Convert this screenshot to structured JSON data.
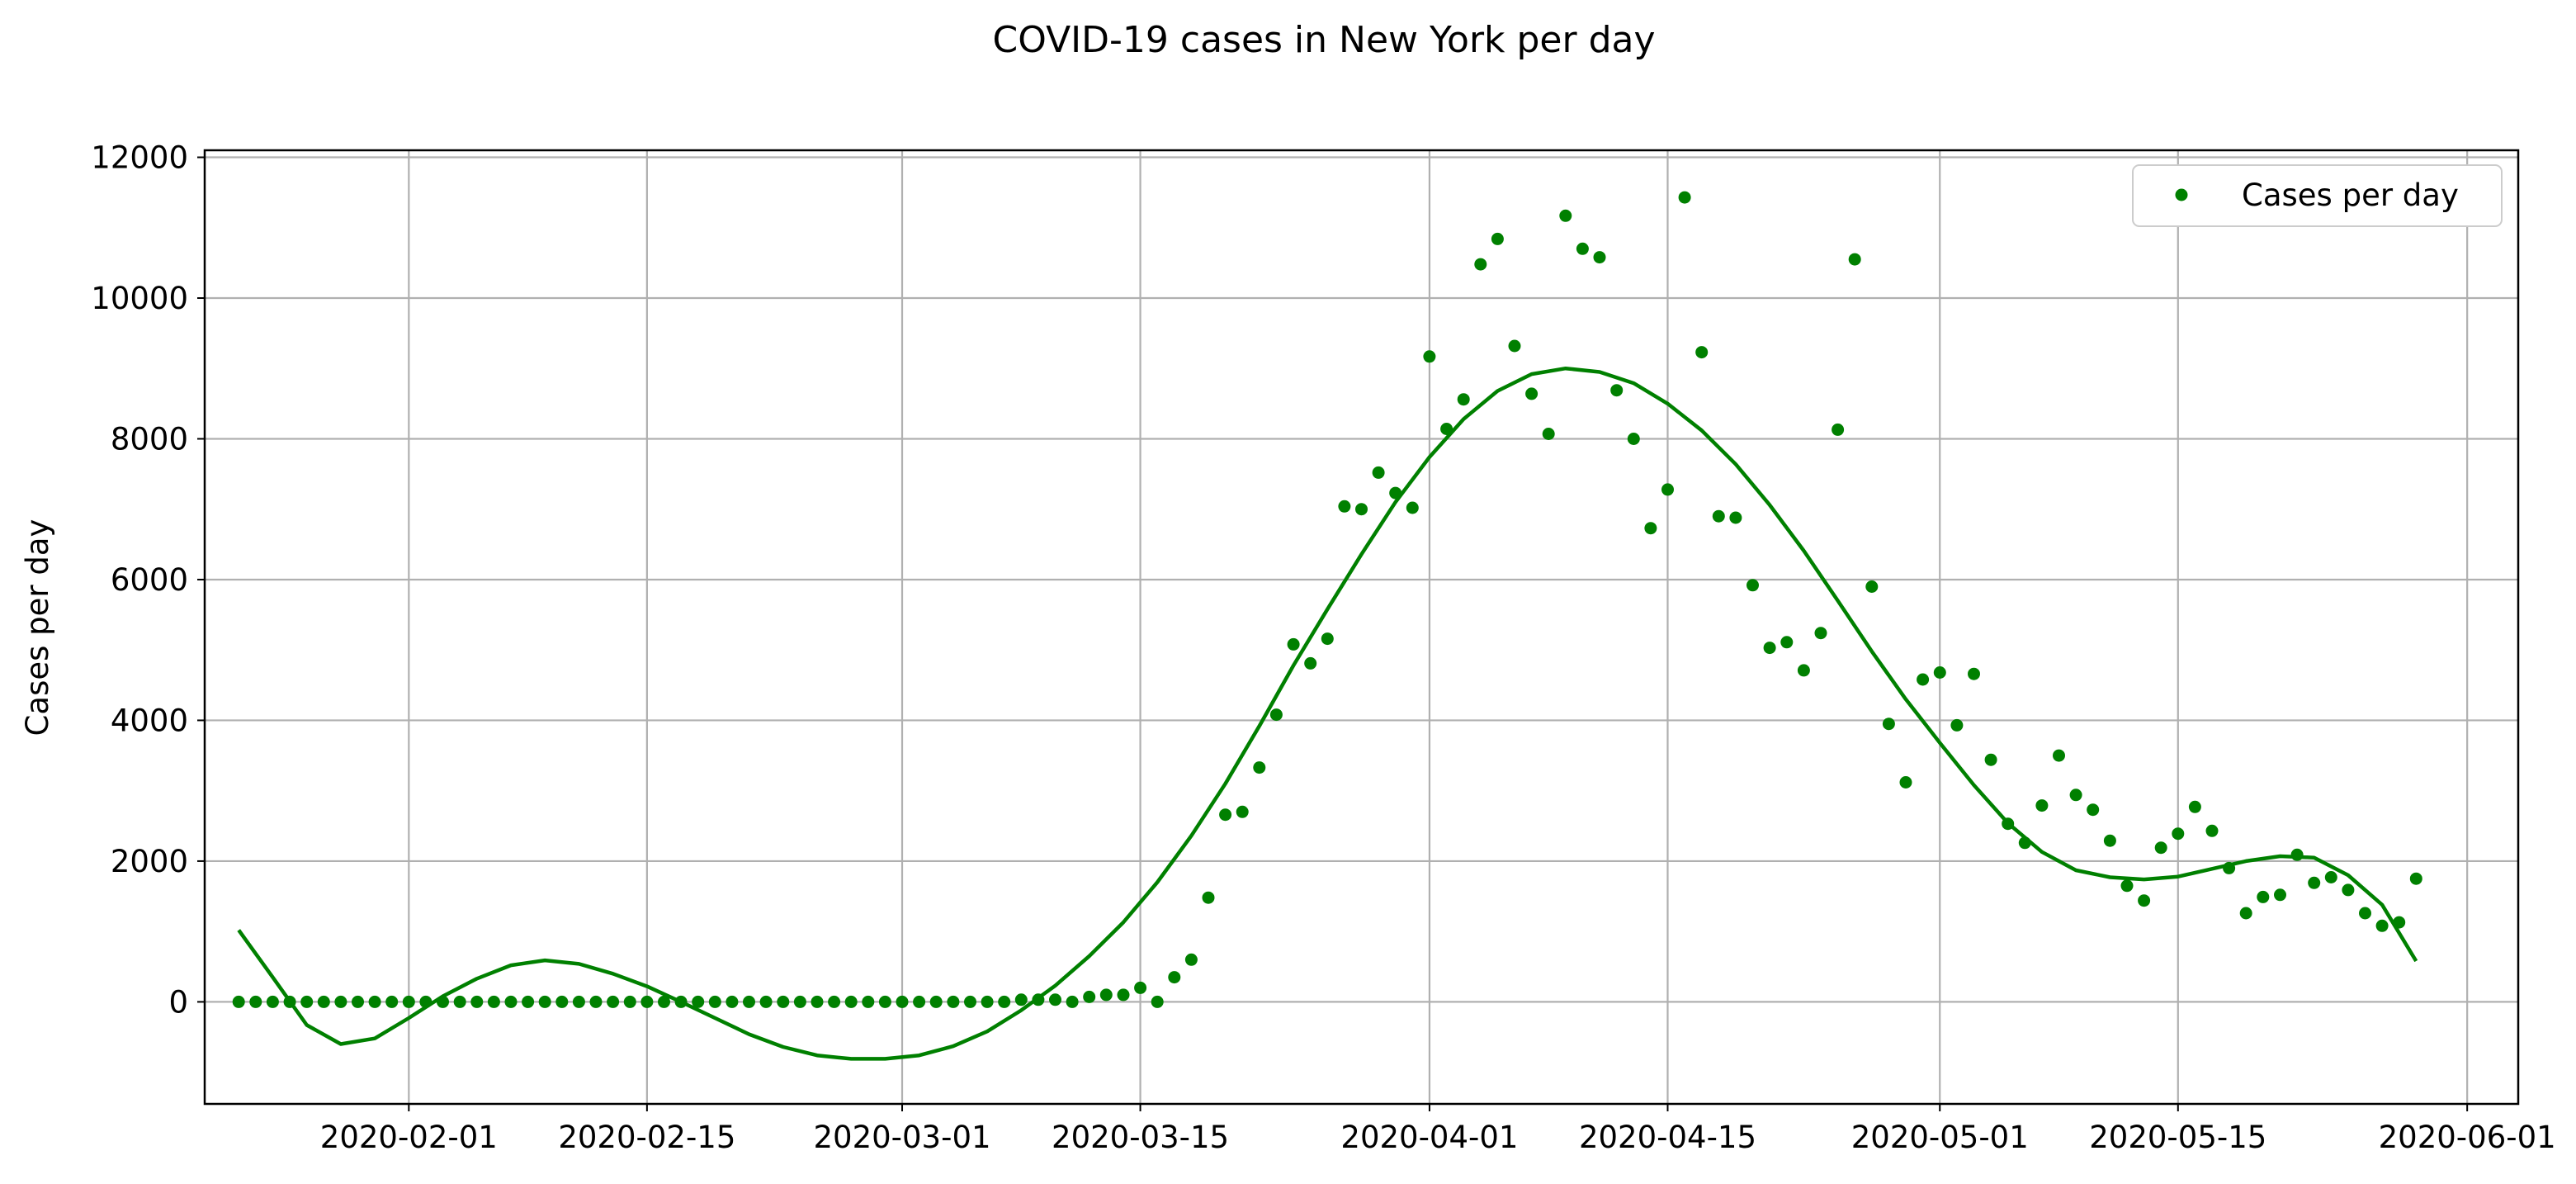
{
  "chart_data": {
    "type": "scatter",
    "title": "COVID-19 cases in New York per day",
    "xlabel": "",
    "ylabel": "Cases per day",
    "x_type": "date",
    "xlim": [
      "2020-01-20",
      "2020-06-04"
    ],
    "ylim": [
      -1450,
      12100
    ],
    "x_ticks": [
      "2020-02-01",
      "2020-02-15",
      "2020-03-01",
      "2020-03-15",
      "2020-04-01",
      "2020-04-15",
      "2020-05-01",
      "2020-05-15",
      "2020-06-01"
    ],
    "y_ticks": [
      0,
      2000,
      4000,
      6000,
      8000,
      10000,
      12000
    ],
    "grid": true,
    "legend_position": "top-right",
    "colors": {
      "series": "#008000",
      "grid": "#b0b0b0",
      "axes": "#000000"
    },
    "series": [
      {
        "name": "Cases per day",
        "style": "points",
        "x": [
          "2020-01-22",
          "2020-01-23",
          "2020-01-24",
          "2020-01-25",
          "2020-01-26",
          "2020-01-27",
          "2020-01-28",
          "2020-01-29",
          "2020-01-30",
          "2020-01-31",
          "2020-02-01",
          "2020-02-02",
          "2020-02-03",
          "2020-02-04",
          "2020-02-05",
          "2020-02-06",
          "2020-02-07",
          "2020-02-08",
          "2020-02-09",
          "2020-02-10",
          "2020-02-11",
          "2020-02-12",
          "2020-02-13",
          "2020-02-14",
          "2020-02-15",
          "2020-02-16",
          "2020-02-17",
          "2020-02-18",
          "2020-02-19",
          "2020-02-20",
          "2020-02-21",
          "2020-02-22",
          "2020-02-23",
          "2020-02-24",
          "2020-02-25",
          "2020-02-26",
          "2020-02-27",
          "2020-02-28",
          "2020-02-29",
          "2020-03-01",
          "2020-03-02",
          "2020-03-03",
          "2020-03-04",
          "2020-03-05",
          "2020-03-06",
          "2020-03-07",
          "2020-03-08",
          "2020-03-09",
          "2020-03-10",
          "2020-03-11",
          "2020-03-12",
          "2020-03-13",
          "2020-03-14",
          "2020-03-15",
          "2020-03-16",
          "2020-03-17",
          "2020-03-18",
          "2020-03-19",
          "2020-03-20",
          "2020-03-21",
          "2020-03-22",
          "2020-03-23",
          "2020-03-24",
          "2020-03-25",
          "2020-03-26",
          "2020-03-27",
          "2020-03-28",
          "2020-03-29",
          "2020-03-30",
          "2020-03-31",
          "2020-04-01",
          "2020-04-02",
          "2020-04-03",
          "2020-04-04",
          "2020-04-05",
          "2020-04-06",
          "2020-04-07",
          "2020-04-08",
          "2020-04-09",
          "2020-04-10",
          "2020-04-11",
          "2020-04-12",
          "2020-04-13",
          "2020-04-14",
          "2020-04-15",
          "2020-04-16",
          "2020-04-17",
          "2020-04-18",
          "2020-04-19",
          "2020-04-20",
          "2020-04-21",
          "2020-04-22",
          "2020-04-23",
          "2020-04-24",
          "2020-04-25",
          "2020-04-26",
          "2020-04-27",
          "2020-04-28",
          "2020-04-29",
          "2020-04-30",
          "2020-05-01",
          "2020-05-02",
          "2020-05-03",
          "2020-05-04",
          "2020-05-05",
          "2020-05-06",
          "2020-05-07",
          "2020-05-08",
          "2020-05-09",
          "2020-05-10",
          "2020-05-11",
          "2020-05-12",
          "2020-05-13",
          "2020-05-14",
          "2020-05-15",
          "2020-05-16",
          "2020-05-17",
          "2020-05-18",
          "2020-05-19",
          "2020-05-20",
          "2020-05-21",
          "2020-05-22",
          "2020-05-23",
          "2020-05-24",
          "2020-05-25",
          "2020-05-26",
          "2020-05-27",
          "2020-05-28",
          "2020-05-29"
        ],
        "y": [
          0,
          0,
          0,
          0,
          0,
          0,
          0,
          0,
          0,
          0,
          0,
          0,
          0,
          0,
          0,
          0,
          0,
          0,
          0,
          0,
          0,
          0,
          0,
          0,
          0,
          0,
          0,
          0,
          0,
          0,
          0,
          0,
          0,
          0,
          0,
          0,
          0,
          0,
          0,
          0,
          0,
          0,
          0,
          0,
          0,
          0,
          30,
          30,
          30,
          0,
          70,
          100,
          100,
          200,
          0,
          350,
          600,
          1480,
          2660,
          2700,
          3330,
          4080,
          5080,
          4810,
          5160,
          7040,
          7000,
          7520,
          7230,
          7020,
          9170,
          8140,
          8560,
          10480,
          10840,
          9320,
          8640,
          8070,
          11170,
          10700,
          10580,
          8690,
          8000,
          6730,
          7280,
          11430,
          9230,
          6900,
          6880,
          5920,
          5030,
          5110,
          4710,
          5240,
          8130,
          10550,
          5900,
          3950,
          3120,
          4580,
          4680,
          3930,
          4660,
          3440,
          2530,
          2260,
          2790,
          3500,
          2940,
          2730,
          2290,
          1650,
          1440,
          2190,
          2390,
          2770,
          2430,
          1900,
          1260,
          1490,
          1520,
          2090,
          1690,
          1770,
          1590,
          1260,
          1080,
          1130,
          1750
        ]
      },
      {
        "style": "line",
        "x": [
          "2020-01-22",
          "2020-01-24",
          "2020-01-26",
          "2020-01-28",
          "2020-01-30",
          "2020-02-01",
          "2020-02-03",
          "2020-02-05",
          "2020-02-07",
          "2020-02-09",
          "2020-02-11",
          "2020-02-13",
          "2020-02-15",
          "2020-02-17",
          "2020-02-19",
          "2020-02-21",
          "2020-02-23",
          "2020-02-25",
          "2020-02-27",
          "2020-02-29",
          "2020-03-02",
          "2020-03-04",
          "2020-03-06",
          "2020-03-08",
          "2020-03-10",
          "2020-03-12",
          "2020-03-14",
          "2020-03-16",
          "2020-03-18",
          "2020-03-20",
          "2020-03-22",
          "2020-03-24",
          "2020-03-26",
          "2020-03-28",
          "2020-03-30",
          "2020-04-01",
          "2020-04-03",
          "2020-04-05",
          "2020-04-07",
          "2020-04-09",
          "2020-04-11",
          "2020-04-13",
          "2020-04-15",
          "2020-04-17",
          "2020-04-19",
          "2020-04-21",
          "2020-04-23",
          "2020-04-25",
          "2020-04-27",
          "2020-04-29",
          "2020-05-01",
          "2020-05-03",
          "2020-05-05",
          "2020-05-07",
          "2020-05-09",
          "2020-05-11",
          "2020-05-13",
          "2020-05-15",
          "2020-05-17",
          "2020-05-19",
          "2020-05-21",
          "2020-05-23",
          "2020-05-25",
          "2020-05-27",
          "2020-05-29"
        ],
        "y": [
          1020,
          350,
          -330,
          -600,
          -520,
          -230,
          80,
          330,
          520,
          590,
          540,
          400,
          220,
          0,
          -230,
          -460,
          -640,
          -760,
          -810,
          -810,
          -760,
          -630,
          -420,
          -120,
          230,
          650,
          1130,
          1700,
          2360,
          3100,
          3920,
          4780,
          5580,
          6360,
          7100,
          7740,
          8280,
          8680,
          8920,
          9000,
          8950,
          8790,
          8500,
          8120,
          7640,
          7060,
          6410,
          5700,
          4980,
          4300,
          3680,
          3080,
          2540,
          2130,
          1870,
          1770,
          1740,
          1780,
          1890,
          2000,
          2070,
          2050,
          1800,
          1380,
          580
        ]
      }
    ]
  }
}
